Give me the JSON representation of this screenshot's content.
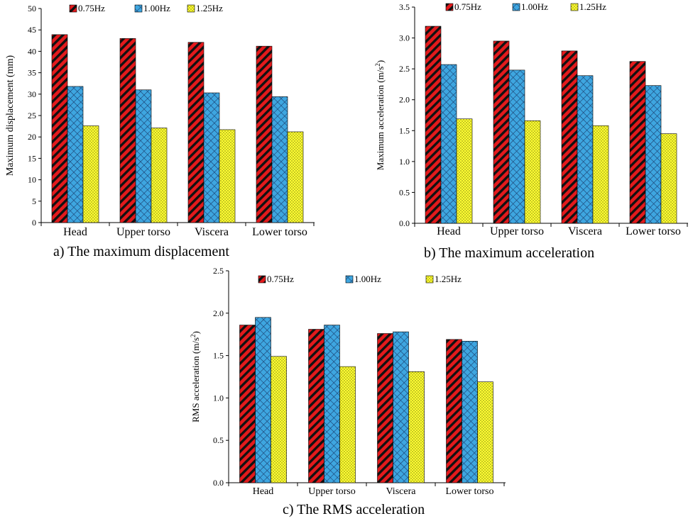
{
  "chart_data": [
    {
      "type": "bar",
      "id": "a",
      "caption": "a) The maximum displacement",
      "ylabel": "Maximum displacement (mm)",
      "ylabel_unit_super": "",
      "ylim": [
        0,
        50
      ],
      "ytick_step": 5,
      "ytick_decimals": 0,
      "categories": [
        "Head",
        "Upper torso",
        "Viscera",
        "Lower torso"
      ],
      "series": [
        {
          "name": "0.75Hz",
          "values": [
            43.9,
            43.0,
            42.1,
            41.2
          ]
        },
        {
          "name": "1.00Hz",
          "values": [
            31.8,
            31.0,
            30.3,
            29.4
          ]
        },
        {
          "name": "1.25Hz",
          "values": [
            22.6,
            22.1,
            21.7,
            21.2
          ]
        }
      ],
      "grid": false,
      "legend": "top"
    },
    {
      "type": "bar",
      "id": "b",
      "caption": "b) The maximum acceleration",
      "ylabel": "Maximum acceleration (m/s",
      "ylabel_unit_super": "2",
      "ylabel_tail": ")",
      "ylim": [
        0,
        3.5
      ],
      "ytick_step": 0.5,
      "ytick_decimals": 1,
      "categories": [
        "Head",
        "Upper torso",
        "Viscera",
        "Lower torso"
      ],
      "series": [
        {
          "name": "0.75Hz",
          "values": [
            3.19,
            2.95,
            2.79,
            2.62
          ]
        },
        {
          "name": "1.00Hz",
          "values": [
            2.57,
            2.48,
            2.39,
            2.23
          ]
        },
        {
          "name": "1.25Hz",
          "values": [
            1.69,
            1.66,
            1.58,
            1.45
          ]
        }
      ],
      "grid": false,
      "legend": "top"
    },
    {
      "type": "bar",
      "id": "c",
      "caption": "c) The RMS acceleration",
      "ylabel": "RMS acceleration (m/s",
      "ylabel_unit_super": "2",
      "ylabel_tail": ")",
      "ylim": [
        0,
        2.5
      ],
      "ytick_step": 0.5,
      "ytick_decimals": 1,
      "categories": [
        "Head",
        "Upper torso",
        "Viscera",
        "Lower torso"
      ],
      "series": [
        {
          "name": "0.75Hz",
          "values": [
            1.86,
            1.81,
            1.76,
            1.69
          ]
        },
        {
          "name": "1.00Hz",
          "values": [
            1.95,
            1.86,
            1.78,
            1.67
          ]
        },
        {
          "name": "1.25Hz",
          "values": [
            1.49,
            1.37,
            1.31,
            1.19
          ]
        }
      ],
      "grid": false,
      "legend": "top"
    }
  ],
  "colors": {
    "series_0": "#e31a1c",
    "series_1": "#3ea6e0",
    "series_2": "#ffff33",
    "axis": "#000000"
  },
  "patterns": {
    "series_0": "diagonal-stripes",
    "series_1": "crosshatch",
    "series_2": "dots"
  }
}
